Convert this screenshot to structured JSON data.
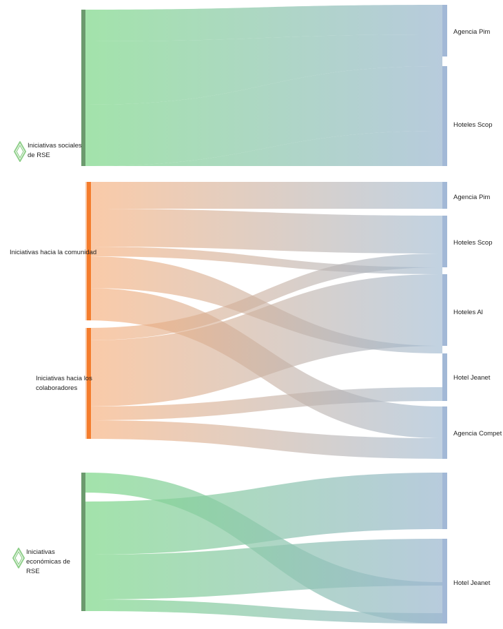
{
  "chart_data": [
    {
      "type": "sankey",
      "title": "",
      "sources": [
        {
          "id": "s1",
          "label": "Iniciativas sociales de RSE",
          "color": "#7fd88a",
          "bar": "#6c9a6e"
        }
      ],
      "targets": [
        {
          "id": "t1",
          "label": "Agencia Pim",
          "value": 4
        },
        {
          "id": "t2",
          "label": "Hoteles Scop",
          "value": 8
        }
      ],
      "flows": [
        {
          "from": "s1",
          "to": "t1",
          "value": 2
        },
        {
          "from": "s1",
          "to": "t2",
          "value": 3
        },
        {
          "from": "s1",
          "to": "t1",
          "value": 2
        },
        {
          "from": "s1",
          "to": "t2",
          "value": 5
        }
      ]
    },
    {
      "type": "sankey",
      "title": "",
      "sources": [
        {
          "id": "c1",
          "label": "Iniciativas hacia la comunidad",
          "color": "#f8aa72",
          "bar": "#f47c2c"
        },
        {
          "id": "c2",
          "label": "Iniciativas hacia los colaboradores",
          "color": "#f8aa72",
          "bar": "#f47c2c"
        }
      ],
      "targets": [
        {
          "id": "u1",
          "label": "Agencia Pim",
          "value": 2
        },
        {
          "id": "u2",
          "label": "Hoteles Scop",
          "value": 4
        },
        {
          "id": "u3",
          "label": "Hoteles Al",
          "value": 6
        },
        {
          "id": "u4",
          "label": "Hotel Jeanet",
          "value": 3
        },
        {
          "id": "u5",
          "label": "Agencia Compet",
          "value": 4
        }
      ],
      "flows": [
        {
          "from": "c1",
          "to": "u1",
          "value": 2
        },
        {
          "from": "c1",
          "to": "u2",
          "value": 3
        },
        {
          "from": "c1",
          "to": "u3",
          "value": 2
        },
        {
          "from": "c1",
          "to": "u4",
          "value": 2
        },
        {
          "from": "c1",
          "to": "u5",
          "value": 2
        },
        {
          "from": "c2",
          "to": "u2",
          "value": 1
        },
        {
          "from": "c2",
          "to": "u3",
          "value": 4
        },
        {
          "from": "c2",
          "to": "u4",
          "value": 1
        },
        {
          "from": "c2",
          "to": "u5",
          "value": 2
        }
      ]
    },
    {
      "type": "sankey",
      "title": "",
      "sources": [
        {
          "id": "e1",
          "label": "Iniciativas económicas de RSE",
          "color": "#7fd88a",
          "bar": "#6c9a6e"
        }
      ],
      "targets": [
        {
          "id": "x1",
          "label": "",
          "value": 4
        },
        {
          "id": "x2",
          "label": "Hotel Jeanet",
          "value": 6
        }
      ],
      "flows": [
        {
          "from": "e1",
          "to": "x2",
          "value": 1
        },
        {
          "from": "e1",
          "to": "x1",
          "value": 3
        },
        {
          "from": "e1",
          "to": "x2",
          "value": 5
        },
        {
          "from": "e1",
          "to": "x1",
          "value": 1
        }
      ]
    }
  ],
  "colors": {
    "target_end": "#9cb7cf",
    "target_bar": "#a2b8d6",
    "diamond": "#8fcf8a"
  }
}
